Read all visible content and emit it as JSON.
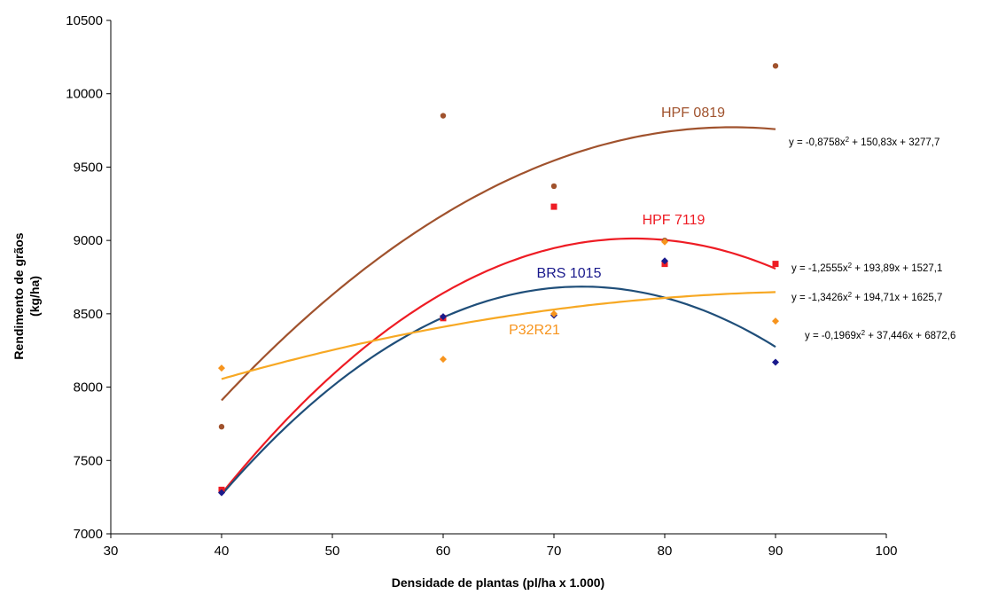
{
  "chart_data": {
    "type": "scatter",
    "xlabel": "Densidade de plantas (pl/ha x 1.000)",
    "ylabel_lines": [
      "Rendimento de grãos",
      "(kg/ha)"
    ],
    "xlim": [
      30,
      100
    ],
    "ylim": [
      7000,
      10500
    ],
    "x_ticks": [
      "30",
      "40",
      "50",
      "60",
      "70",
      "80",
      "90",
      "100"
    ],
    "y_ticks": [
      "7000",
      "7500",
      "8000",
      "8500",
      "9000",
      "9500",
      "10000",
      "10500"
    ],
    "grid": false,
    "series": [
      {
        "name": "HPF 0819",
        "color": "#a0522d",
        "marker": "circle",
        "points": [
          [
            40,
            7730
          ],
          [
            60,
            9850
          ],
          [
            70,
            9370
          ],
          [
            80,
            9000
          ],
          [
            90,
            10190
          ]
        ],
        "trend": {
          "a": -0.8758,
          "b": 150.83,
          "c": 3277.7
        },
        "equation": {
          "pre": "y = -0,8758x",
          "sup": "2",
          "post": " + 150,83x + 3277,7"
        }
      },
      {
        "name": "HPF 7119",
        "color": "#ee1c24",
        "marker": "square",
        "points": [
          [
            40,
            7300
          ],
          [
            60,
            8470
          ],
          [
            70,
            9230
          ],
          [
            80,
            8840
          ],
          [
            90,
            8840
          ]
        ],
        "trend": {
          "a": -1.2555,
          "b": 193.89,
          "c": 1527.1
        },
        "equation": {
          "pre": "y = -1,2555x",
          "sup": "2",
          "post": " + 193,89x + 1527,1"
        }
      },
      {
        "name": "BRS 1015",
        "color": "#1a1a8c",
        "line_color": "#1f4e79",
        "marker": "diamond",
        "points": [
          [
            40,
            7280
          ],
          [
            60,
            8480
          ],
          [
            70,
            8490
          ],
          [
            80,
            8860
          ],
          [
            90,
            8170
          ]
        ],
        "trend": {
          "a": -1.3426,
          "b": 194.71,
          "c": 1625.7
        },
        "equation": {
          "pre": "y = -1,3426x",
          "sup": "2",
          "post": " + 194,71x + 1625,7"
        }
      },
      {
        "name": "P32R21",
        "color": "#f7941d",
        "line_color": "#f7a823",
        "marker": "diamond",
        "points": [
          [
            40,
            8130
          ],
          [
            60,
            8190
          ],
          [
            70,
            8500
          ],
          [
            80,
            8990
          ],
          [
            90,
            8450
          ]
        ],
        "trend": {
          "a": -0.1969,
          "b": 37.446,
          "c": 6872.6
        },
        "equation": {
          "pre": "y = -0,1969x",
          "sup": "2",
          "post": " + 37,446x + 6872,6"
        }
      }
    ]
  }
}
